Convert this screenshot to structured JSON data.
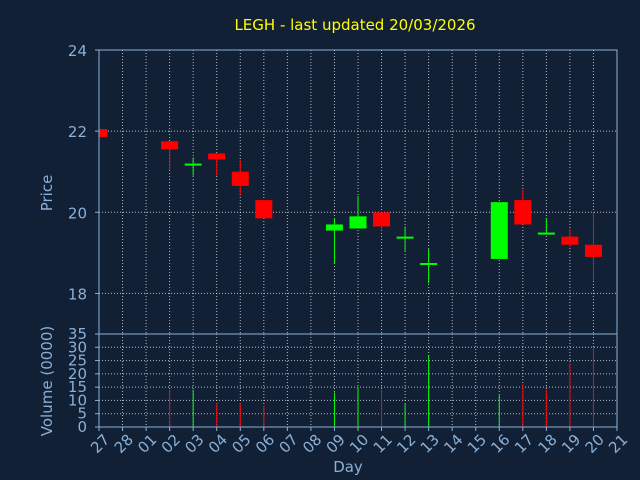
{
  "chart_data": {
    "type": "candlestick",
    "title": "LEGH - last updated 20/03/2026",
    "ylabel": "Price",
    "volume_ylabel": "Volume (0000)",
    "xlabel": "Day",
    "ylim": [
      17,
      24
    ],
    "yticks": [
      18,
      20,
      22,
      24
    ],
    "volume_ylim": [
      0,
      35
    ],
    "volume_yticks": [
      0,
      5,
      10,
      15,
      20,
      25,
      30,
      35
    ],
    "categories": [
      "27",
      "28",
      "01",
      "02",
      "03",
      "04",
      "05",
      "06",
      "07",
      "08",
      "09",
      "10",
      "11",
      "12",
      "13",
      "14",
      "15",
      "16",
      "17",
      "18",
      "19",
      "20",
      "21"
    ],
    "grid": true,
    "colors": {
      "background": "#112034",
      "axis": "#8ab0d8",
      "title": "#ffff00",
      "grid": "#ffffff",
      "up": "#00ff00",
      "down": "#ff0000"
    },
    "candles": [
      {
        "day": "27",
        "open": 22.05,
        "high": 22.05,
        "low": 21.85,
        "close": 21.85
      },
      {
        "day": "02",
        "open": 21.75,
        "high": 21.75,
        "low": 21.05,
        "close": 21.55
      },
      {
        "day": "03",
        "open": 21.2,
        "high": 21.35,
        "low": 20.9,
        "close": 21.2
      },
      {
        "day": "04",
        "open": 21.45,
        "high": 21.45,
        "low": 20.9,
        "close": 21.3
      },
      {
        "day": "05",
        "open": 21.0,
        "high": 21.3,
        "low": 20.4,
        "close": 20.65
      },
      {
        "day": "06",
        "open": 20.3,
        "high": 20.3,
        "low": 19.85,
        "close": 19.85
      },
      {
        "day": "09",
        "open": 19.55,
        "high": 19.85,
        "low": 18.75,
        "close": 19.7
      },
      {
        "day": "10",
        "open": 19.6,
        "high": 20.4,
        "low": 19.6,
        "close": 19.9
      },
      {
        "day": "11",
        "open": 20.0,
        "high": 20.0,
        "low": 19.55,
        "close": 19.65
      },
      {
        "day": "12",
        "open": 19.4,
        "high": 19.65,
        "low": 19.05,
        "close": 19.4
      },
      {
        "day": "13",
        "open": 18.75,
        "high": 19.1,
        "low": 18.25,
        "close": 18.75
      },
      {
        "day": "16",
        "open": 18.85,
        "high": 20.25,
        "low": 18.85,
        "close": 20.25
      },
      {
        "day": "17",
        "open": 20.3,
        "high": 20.55,
        "low": 19.7,
        "close": 19.7
      },
      {
        "day": "18",
        "open": 19.5,
        "high": 19.85,
        "low": 19.45,
        "close": 19.5
      },
      {
        "day": "19",
        "open": 19.4,
        "high": 19.6,
        "low": 19.15,
        "close": 19.2
      },
      {
        "day": "20",
        "open": 19.2,
        "high": 20.0,
        "low": 18.3,
        "close": 18.9
      }
    ],
    "volume": [
      {
        "day": "27",
        "value": 0,
        "color": "down"
      },
      {
        "day": "02",
        "value": 14,
        "color": "down"
      },
      {
        "day": "03",
        "value": 14,
        "color": "up"
      },
      {
        "day": "04",
        "value": 9,
        "color": "down"
      },
      {
        "day": "05",
        "value": 9,
        "color": "down"
      },
      {
        "day": "06",
        "value": 8,
        "color": "down"
      },
      {
        "day": "09",
        "value": 13,
        "color": "up"
      },
      {
        "day": "10",
        "value": 15,
        "color": "up"
      },
      {
        "day": "11",
        "value": 14,
        "color": "down"
      },
      {
        "day": "12",
        "value": 9,
        "color": "up"
      },
      {
        "day": "13",
        "value": 27,
        "color": "up"
      },
      {
        "day": "16",
        "value": 12,
        "color": "up"
      },
      {
        "day": "17",
        "value": 16,
        "color": "down"
      },
      {
        "day": "18",
        "value": 14,
        "color": "down"
      },
      {
        "day": "19",
        "value": 24,
        "color": "down"
      },
      {
        "day": "20",
        "value": 30,
        "color": "down"
      }
    ]
  }
}
